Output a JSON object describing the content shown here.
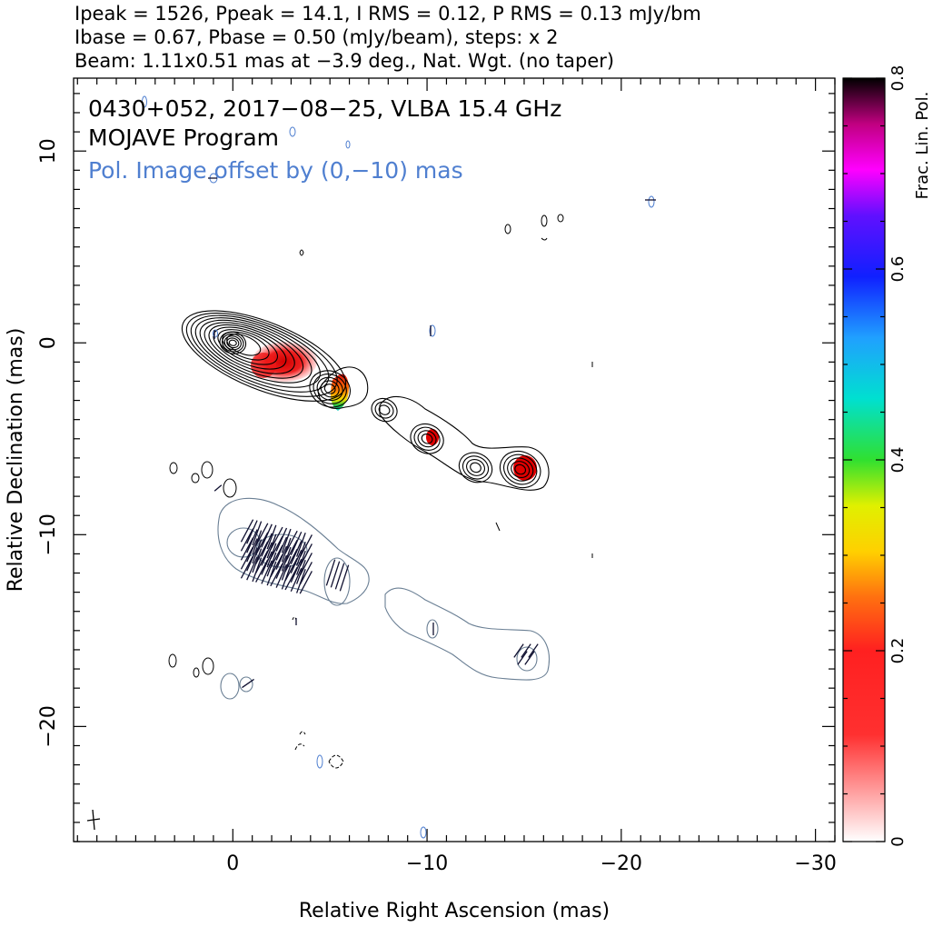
{
  "header": {
    "line1": "Ipeak = 1526, Ppeak = 14.1, I RMS = 0.12, P RMS = 0.13 mJy/bm",
    "line2": "Ibase = 0.67, Pbase = 0.50 (mJy/beam), steps: x 2",
    "line3": "Beam: 1.11x0.51 mas at −3.9 deg., Nat. Wgt. (no taper)"
  },
  "annotations": {
    "source": "0430+052, 2017−08−25, VLBA 15.4 GHz",
    "program": "MOJAVE Program",
    "offset_note": "Pol. Image offset by (0,−10) mas"
  },
  "colors": {
    "stokes_i_contour": "#000000",
    "pol_contour": "#6a7f94",
    "offset_note": "#4f7fd0",
    "evpa_tick": "#101030"
  },
  "chart_data": {
    "type": "heatmap",
    "title": "0430+052, 2017−08−25, VLBA 15.4 GHz",
    "xlabel": "Relative Right Ascension (mas)",
    "ylabel": "Relative Declination (mas)",
    "xlim": [
      8.2,
      -31
    ],
    "ylim": [
      -26,
      13.8
    ],
    "x_axis_reversed": true,
    "x_ticks": [
      0,
      -10,
      -20,
      -30
    ],
    "x_tick_labels": [
      "0",
      "−10",
      "−20",
      "−30"
    ],
    "y_ticks": [
      10,
      0,
      -10,
      -20
    ],
    "y_tick_labels": [
      "10",
      "0",
      "−10",
      "−20"
    ],
    "colorbar": {
      "label": "Frac. Lin. Pol.",
      "range": [
        0,
        0.8
      ],
      "ticks": [
        0,
        0.2,
        0.4,
        0.6,
        0.8
      ],
      "tick_labels": [
        "0",
        "0.2",
        "0.4",
        "0.6",
        "0.8"
      ]
    },
    "jet_components": [
      {
        "x": 0.0,
        "y": 0.0,
        "role": "core"
      },
      {
        "x": -2.2,
        "y": -1.1
      },
      {
        "x": -5.0,
        "y": -2.4
      },
      {
        "x": -7.8,
        "y": -3.5
      },
      {
        "x": -10.0,
        "y": -5.0
      },
      {
        "x": -12.5,
        "y": -6.5
      },
      {
        "x": -14.8,
        "y": -6.6
      }
    ],
    "frac_pol_blobs": [
      {
        "x": -2.0,
        "y": -0.8,
        "frac_pol": 0.1
      },
      {
        "x": -5.2,
        "y": -2.6,
        "frac_pol": 0.18
      },
      {
        "x": -10.0,
        "y": -5.0,
        "frac_pol": 0.1
      },
      {
        "x": -14.8,
        "y": -6.5,
        "frac_pol": 0.12
      }
    ],
    "pol_offset_mas": [
      0,
      -10
    ],
    "legend": "none",
    "grid": false
  }
}
